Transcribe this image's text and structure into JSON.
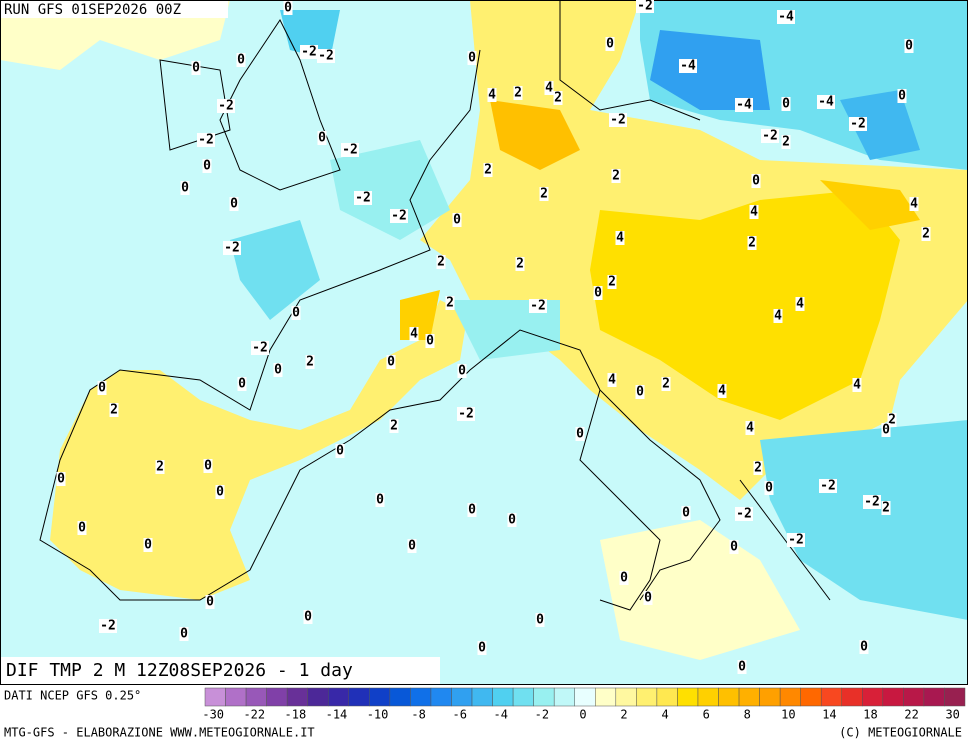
{
  "header": {
    "run": "RUN GFS 01SEP2026 00Z",
    "field": "DIF TMP 2 M 12Z08SEP2026 - 1 day"
  },
  "contour_labels": [
    "0",
    "-2",
    "-4",
    "0",
    "0",
    "-2",
    "-2",
    "0",
    "0",
    "0",
    "-4",
    "4",
    "2",
    "4",
    "2",
    "0",
    "-4",
    "-4",
    "0",
    "-2",
    "-2",
    "-2",
    "-2",
    "0",
    "-2",
    "2",
    "-2",
    "0",
    "2",
    "2",
    "0",
    "0",
    "2",
    "-2",
    "0",
    "-2",
    "0",
    "4",
    "4",
    "4",
    "2",
    "-2",
    "2",
    "2",
    "2",
    "2",
    "0",
    "2",
    "-2",
    "0",
    "4",
    "4",
    "4",
    "0",
    "-2",
    "2",
    "0",
    "0",
    "0",
    "0",
    "0",
    "4",
    "0",
    "2",
    "4",
    "4",
    "2",
    "2",
    "-2",
    "2",
    "0",
    "4",
    "0",
    "0",
    "2",
    "0",
    "2",
    "0",
    "-2",
    "-2",
    "2",
    "0",
    "0",
    "0",
    "0",
    "0",
    "0",
    "-2",
    "0",
    "0",
    "0",
    "0",
    "-2",
    "0",
    "0",
    "0",
    "0",
    "0",
    "-2",
    "0",
    "0",
    "0",
    "0"
  ],
  "legend": {
    "source": "DATI NCEP GFS 0.25°",
    "colors": [
      "#c890d8",
      "#b070c8",
      "#9858b8",
      "#8040a8",
      "#683098",
      "#4c2898",
      "#3828a8",
      "#2030b8",
      "#1040c8",
      "#0858d8",
      "#1070e8",
      "#2088f0",
      "#30a0f0",
      "#40b8f0",
      "#50d0f0",
      "#70e0f0",
      "#98f0f0",
      "#c0f8f8",
      "#e8ffff",
      "#ffffc8",
      "#fff8a0",
      "#fff070",
      "#ffe850",
      "#ffe000",
      "#ffd000",
      "#ffc000",
      "#ffb000",
      "#ffa000",
      "#ff8800",
      "#ff6800",
      "#f84820",
      "#e83028",
      "#d82038",
      "#c81840",
      "#b81848",
      "#a81850",
      "#982050"
    ],
    "labels": [
      "-30",
      "-22",
      "-18",
      "-14",
      "-10",
      "-8",
      "-6",
      "-4",
      "-2",
      "0",
      "2",
      "4",
      "6",
      "8",
      "10",
      "14",
      "18",
      "22",
      "30"
    ]
  },
  "footer": {
    "left": "MTG-GFS - ELABORAZIONE WWW.METEOGIORNALE.IT",
    "right": "(C) METEOGIORNALE"
  }
}
